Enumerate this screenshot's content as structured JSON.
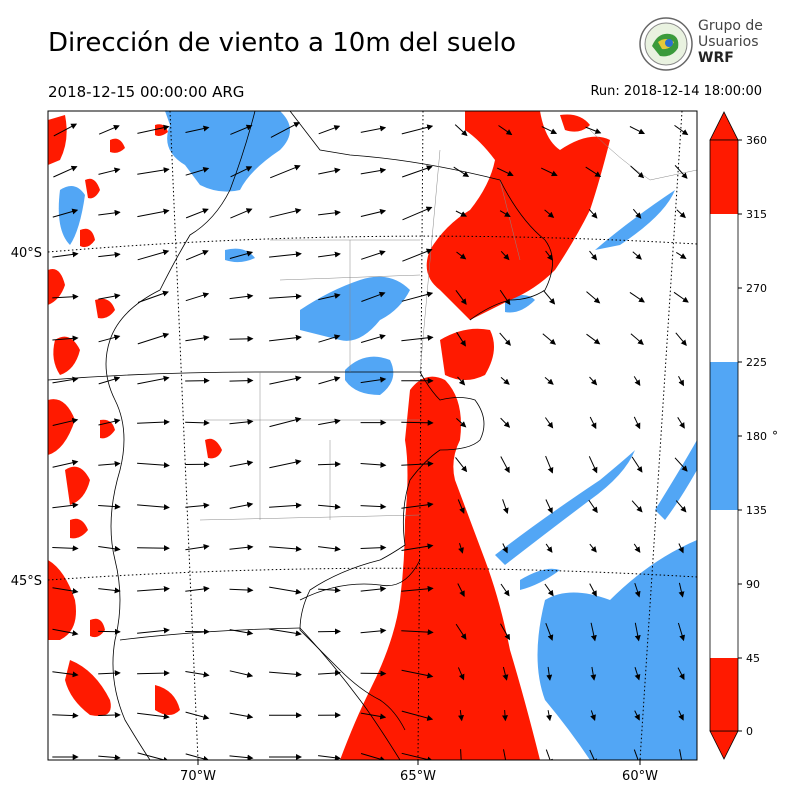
{
  "header": {
    "title": "Dirección de viento a 10m del suelo",
    "valid_time": "2018-12-15 00:00:00 ARG",
    "run_time": "Run: 2018-12-14 18:00:00"
  },
  "logo": {
    "line1": "Grupo de",
    "line2": "Usuarios",
    "line3": "WRF",
    "icon": "globe-seal-icon"
  },
  "map": {
    "lat_labels": [
      "40°S",
      "45°S"
    ],
    "lon_labels": [
      "70°W",
      "65°W",
      "60°W"
    ],
    "features": [
      "country-borders",
      "province-borders",
      "coastline",
      "graticule",
      "wind-vectors"
    ]
  },
  "colorbar": {
    "unit": "°",
    "ticks": [
      "0",
      "45",
      "90",
      "135",
      "180",
      "225",
      "270",
      "315",
      "360"
    ],
    "bands": [
      {
        "from": 0,
        "to": 45,
        "color": "#ff1a00"
      },
      {
        "from": 45,
        "to": 135,
        "color": "#ffffff"
      },
      {
        "from": 135,
        "to": 225,
        "color": "#52a6f5"
      },
      {
        "from": 225,
        "to": 315,
        "color": "#ffffff"
      },
      {
        "from": 315,
        "to": 360,
        "color": "#ff1a00"
      }
    ]
  },
  "colors": {
    "red": "#ff1a00",
    "blue": "#52a6f5",
    "white": "#ffffff"
  }
}
